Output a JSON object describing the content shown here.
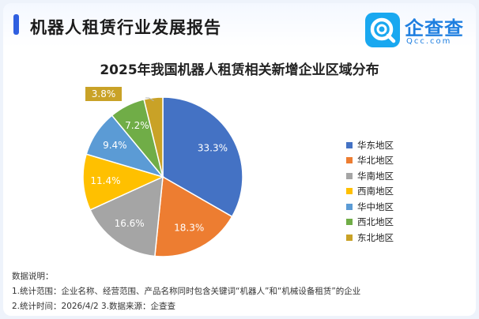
{
  "header": {
    "report_title": "机器人租赁行业发展报告",
    "logo_name": "企查查",
    "logo_domain": "Qcc.com"
  },
  "chart_data": {
    "type": "pie",
    "title": "2025年我国机器人租赁相关新增企业区域分布",
    "categories": [
      "华东地区",
      "华北地区",
      "华南地区",
      "西南地区",
      "华中地区",
      "西北地区",
      "东北地区"
    ],
    "values": [
      33.3,
      18.3,
      16.6,
      11.4,
      9.4,
      7.2,
      3.8
    ],
    "data_labels": [
      "33.3%",
      "18.3%",
      "16.6%",
      "11.4%",
      "9.4%",
      "7.2%",
      "3.8%"
    ],
    "colors": [
      "#4472c4",
      "#ed7d31",
      "#a5a5a5",
      "#ffc000",
      "#5b9bd5",
      "#70ad47",
      "#c9a227"
    ],
    "legend_position": "right"
  },
  "notes": {
    "heading": "数据说明：",
    "line1": "1.统计范围：企业名称、经营范围、产品名称同时包含关键词“机器人”和“机械设备租赁”的企业",
    "line2": "2.统计时间：2026/4/2    3.数据来源：企查查"
  }
}
